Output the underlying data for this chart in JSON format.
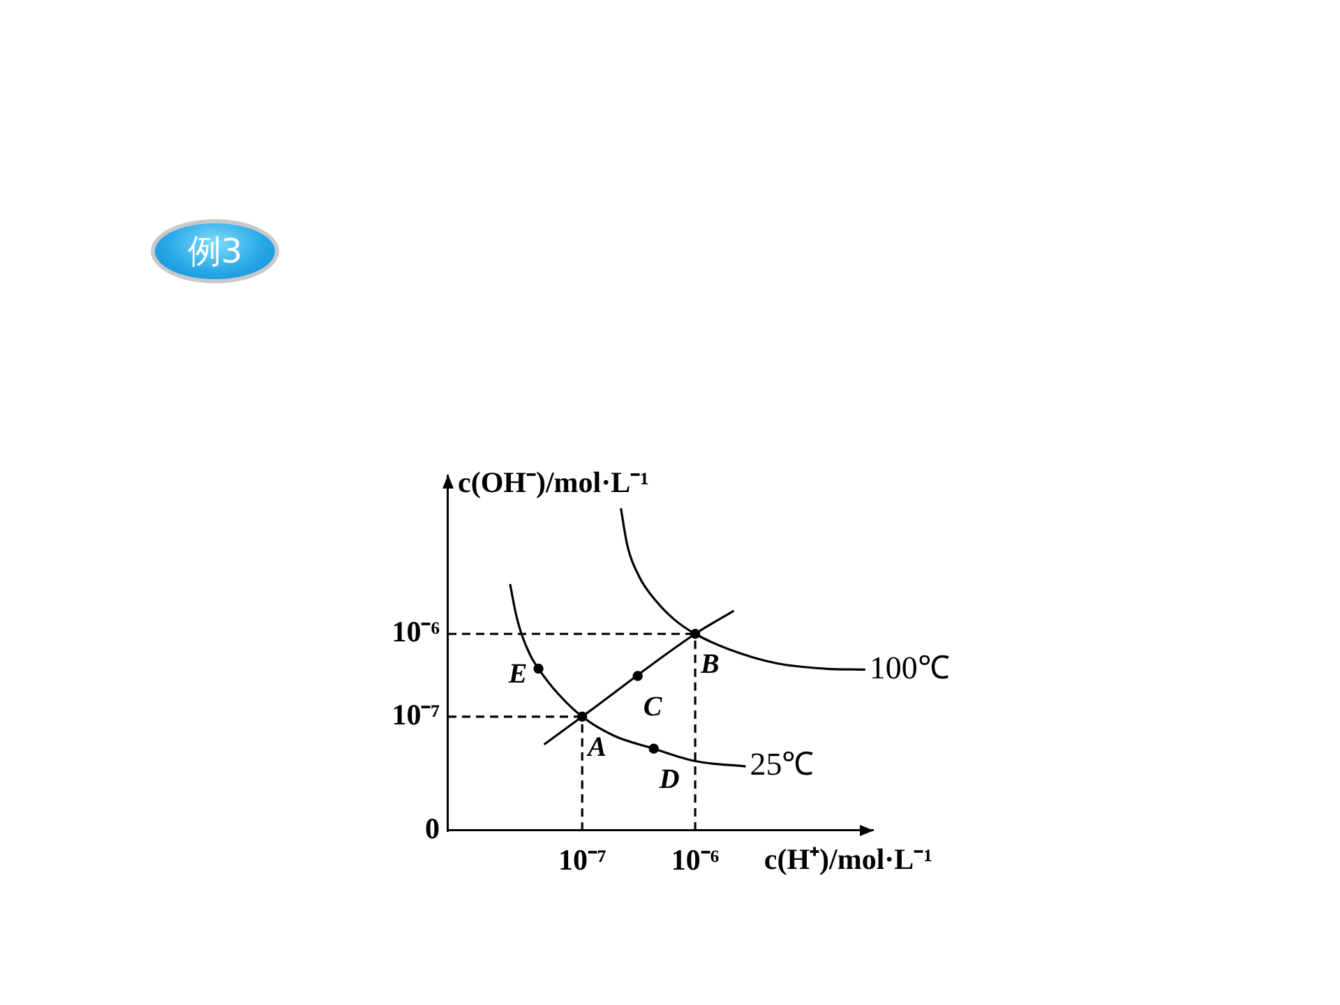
{
  "chart_data": {
    "type": "line",
    "title": "例3",
    "xlabel": "c(H⁺)/mol·L⁻¹",
    "ylabel": "c(OH⁻)/mol·L⁻¹",
    "log": "xy",
    "xlim": [
      6.5e-09,
      3.7e-05
    ],
    "ylim": [
      4.2e-09,
      8.1e-05
    ],
    "xticks": [
      {
        "value": 1e-07,
        "label": "10⁻⁷"
      },
      {
        "value": 1e-06,
        "label": "10⁻⁶"
      }
    ],
    "yticks": [
      {
        "value": 4.2e-09,
        "label": "0"
      },
      {
        "value": 1e-07,
        "label": "10⁻⁷"
      },
      {
        "value": 1e-06,
        "label": "10⁻⁶"
      }
    ],
    "grid": false,
    "legend": false,
    "marker": "none",
    "line_style": "solid",
    "series": [
      {
        "type": "line",
        "name": "25℃",
        "color": "#000000",
        "x": [
          2.3e-08,
          2.6e-08,
          2.9e-08,
          3.5e-08,
          4.1e-08,
          6.1e-08,
          1e-07,
          1.9e-07,
          4.3e-07,
          1e-06,
          2.8e-06
        ],
        "values": [
          4e-06,
          1.7e-06,
          1e-06,
          5.4e-07,
          3.8e-07,
          1.9e-07,
          1e-07,
          5.9e-08,
          4.1e-08,
          2.9e-08,
          2.5e-08
        ]
      },
      {
        "type": "line",
        "name": "100℃",
        "color": "#000000",
        "x": [
          2.2e-07,
          2.5e-07,
          3.2e-07,
          4.5e-07,
          6.5e-07,
          1e-06,
          2e-06,
          5.3e-06,
          1.4e-05,
          3.2e-05
        ],
        "values": [
          3.3e-05,
          1.2e-05,
          4.9e-06,
          2.5e-06,
          1.5e-06,
          1e-06,
          6.5e-07,
          4.4e-07,
          3.8e-07,
          3.7e-07
        ]
      },
      {
        "type": "line",
        "color": "#000000",
        "x": [
          4.6e-08,
          1e-07,
          1e-06,
          2.2e-06
        ],
        "values": [
          4.6e-08,
          1e-07,
          1e-06,
          1.9e-06
        ]
      },
      {
        "type": "line",
        "color": "#000000",
        "line_style": "dashed",
        "x": [
          1e-07,
          1e-07
        ],
        "values": [
          4.2e-09,
          1e-07
        ]
      },
      {
        "type": "line",
        "color": "#000000",
        "line_style": "dashed",
        "x": [
          6.5e-09,
          1e-07
        ],
        "values": [
          1e-07,
          1e-07
        ]
      },
      {
        "type": "line",
        "color": "#000000",
        "line_style": "dashed",
        "x": [
          1e-06,
          1e-06
        ],
        "values": [
          4.2e-09,
          1e-06
        ]
      },
      {
        "type": "line",
        "color": "#000000",
        "line_style": "dashed",
        "x": [
          6.5e-09,
          1e-06
        ],
        "values": [
          1e-06,
          1e-06
        ]
      },
      {
        "type": "scatter",
        "color": "#000000",
        "marker": "circle",
        "x": [
          1e-07,
          1e-06,
          3.1e-07,
          4.3e-07,
          4.1e-08
        ],
        "values": [
          1e-07,
          1e-06,
          3.1e-07,
          4.1e-08,
          3.8e-07
        ]
      }
    ],
    "annotations": [
      {
        "text": "A",
        "x": 1e-07,
        "y": 1e-07
      },
      {
        "text": "B",
        "x": 1e-06,
        "y": 1e-06
      },
      {
        "text": "C",
        "x": 3.1e-07,
        "y": 3.1e-07
      },
      {
        "text": "D",
        "x": 4.3e-07,
        "y": 4.1e-08
      },
      {
        "text": "E",
        "x": 4.1e-08,
        "y": 3.8e-07
      }
    ]
  }
}
